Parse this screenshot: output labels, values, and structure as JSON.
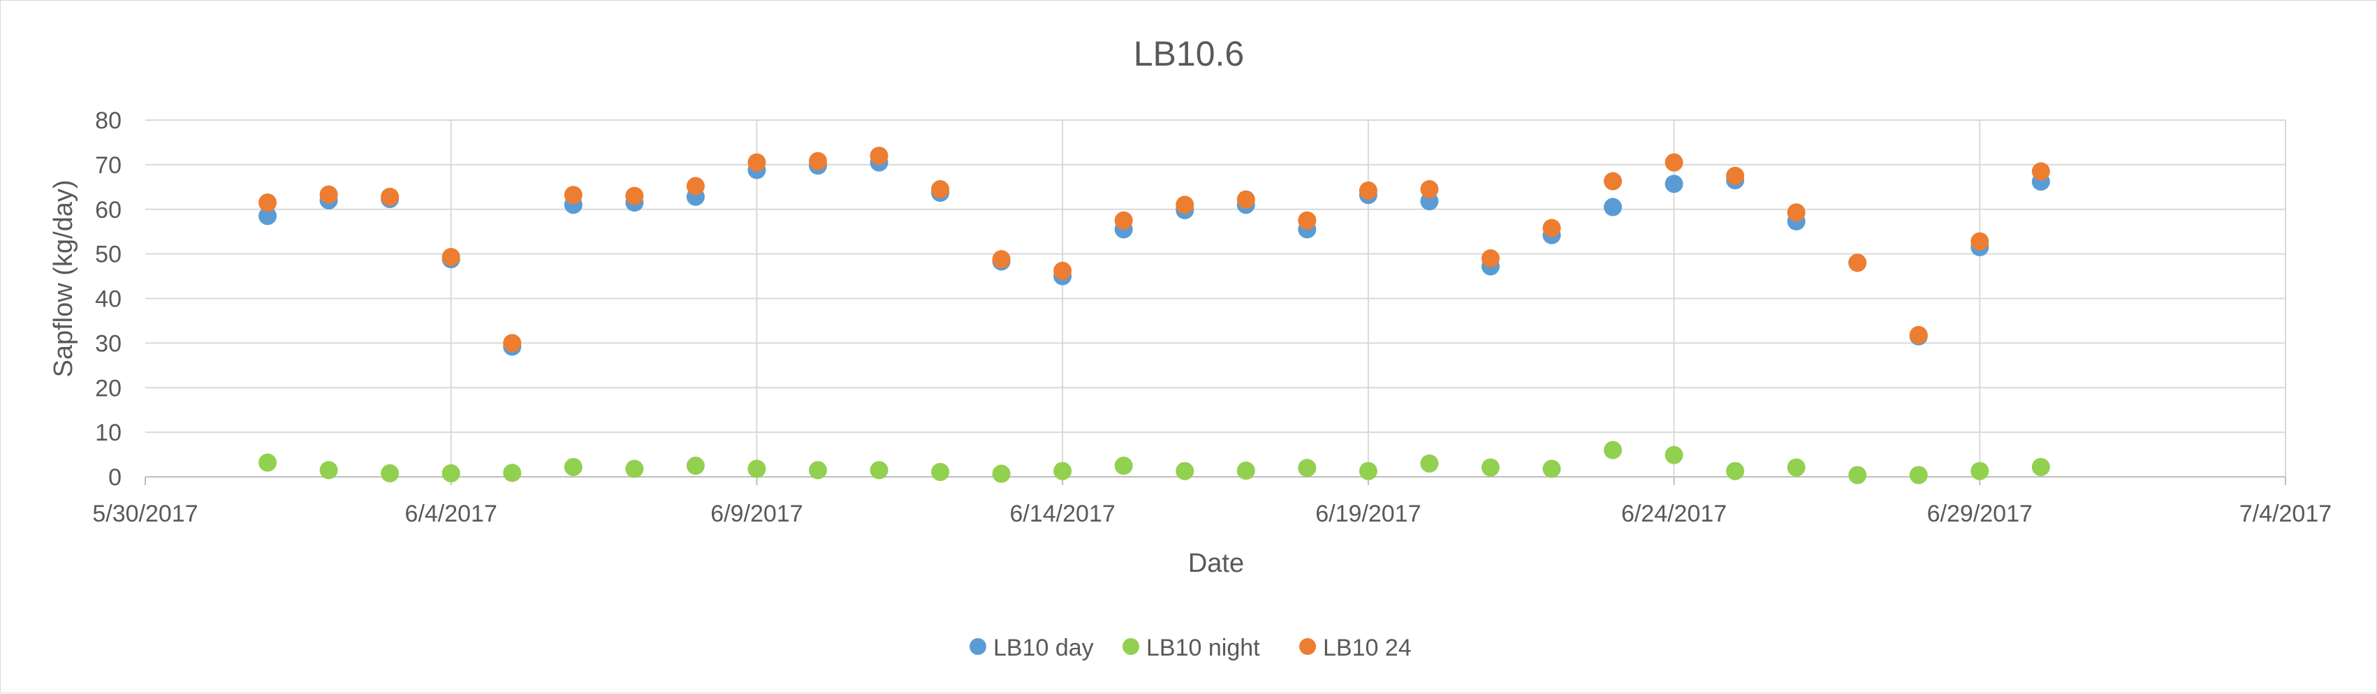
{
  "chart_data": {
    "type": "scatter",
    "title": "LB10.6",
    "xlabel": "Date",
    "ylabel": "Sapflow (kg/day)",
    "ylim": [
      0,
      80
    ],
    "yticks": [
      0,
      10,
      20,
      30,
      40,
      50,
      60,
      70,
      80
    ],
    "xlim": [
      "2017-05-30",
      "2017-07-04"
    ],
    "xticks": [
      "5/30/2017",
      "6/4/2017",
      "6/9/2017",
      "6/14/2017",
      "6/19/2017",
      "6/24/2017",
      "6/29/2017",
      "7/4/2017"
    ],
    "xtick_dates": [
      "2017-05-30",
      "2017-06-04",
      "2017-06-09",
      "2017-06-14",
      "2017-06-19",
      "2017-06-24",
      "2017-06-29",
      "2017-07-04"
    ],
    "grid": {
      "horizontal": true,
      "vertical": true
    },
    "legend_position": "bottom",
    "x": [
      "2017-06-01",
      "2017-06-02",
      "2017-06-03",
      "2017-06-04",
      "2017-06-05",
      "2017-06-06",
      "2017-06-07",
      "2017-06-08",
      "2017-06-09",
      "2017-06-10",
      "2017-06-11",
      "2017-06-12",
      "2017-06-13",
      "2017-06-14",
      "2017-06-15",
      "2017-06-16",
      "2017-06-17",
      "2017-06-18",
      "2017-06-19",
      "2017-06-20",
      "2017-06-21",
      "2017-06-22",
      "2017-06-23",
      "2017-06-24",
      "2017-06-25",
      "2017-06-26",
      "2017-06-27",
      "2017-06-28",
      "2017-06-29",
      "2017-06-30"
    ],
    "series": [
      {
        "name": "LB10 day",
        "color": "#5b9bd5",
        "values": [
          58.5,
          62,
          62.3,
          48.8,
          29.2,
          61,
          61.5,
          62.8,
          68.8,
          69.8,
          70.5,
          63.7,
          48.3,
          45,
          55.5,
          59.8,
          61,
          55.5,
          63.2,
          61.8,
          47.2,
          54.2,
          60.5,
          65.7,
          66.5,
          57.3,
          48,
          31.5,
          51.5,
          66.2
        ]
      },
      {
        "name": "LB10 night",
        "color": "#92d050",
        "values": [
          3.2,
          1.5,
          0.8,
          0.8,
          0.9,
          2.2,
          1.8,
          2.5,
          1.8,
          1.5,
          1.5,
          1.1,
          0.7,
          1.3,
          2.5,
          1.3,
          1.4,
          2,
          1.3,
          3,
          2.1,
          1.8,
          6,
          4.9,
          1.3,
          2.1,
          0.4,
          0.4,
          1.3,
          2.2
        ]
      },
      {
        "name": "LB10 24",
        "color": "#ed7d31",
        "values": [
          61.5,
          63.3,
          62.8,
          49.3,
          30,
          63.2,
          63,
          65.2,
          70.5,
          70.8,
          72,
          64.5,
          48.8,
          46.2,
          57.5,
          61,
          62.2,
          57.5,
          64.2,
          64.5,
          49,
          55.8,
          66.3,
          70.5,
          67.5,
          59.3,
          48,
          31.8,
          52.8,
          68.5
        ]
      }
    ]
  }
}
